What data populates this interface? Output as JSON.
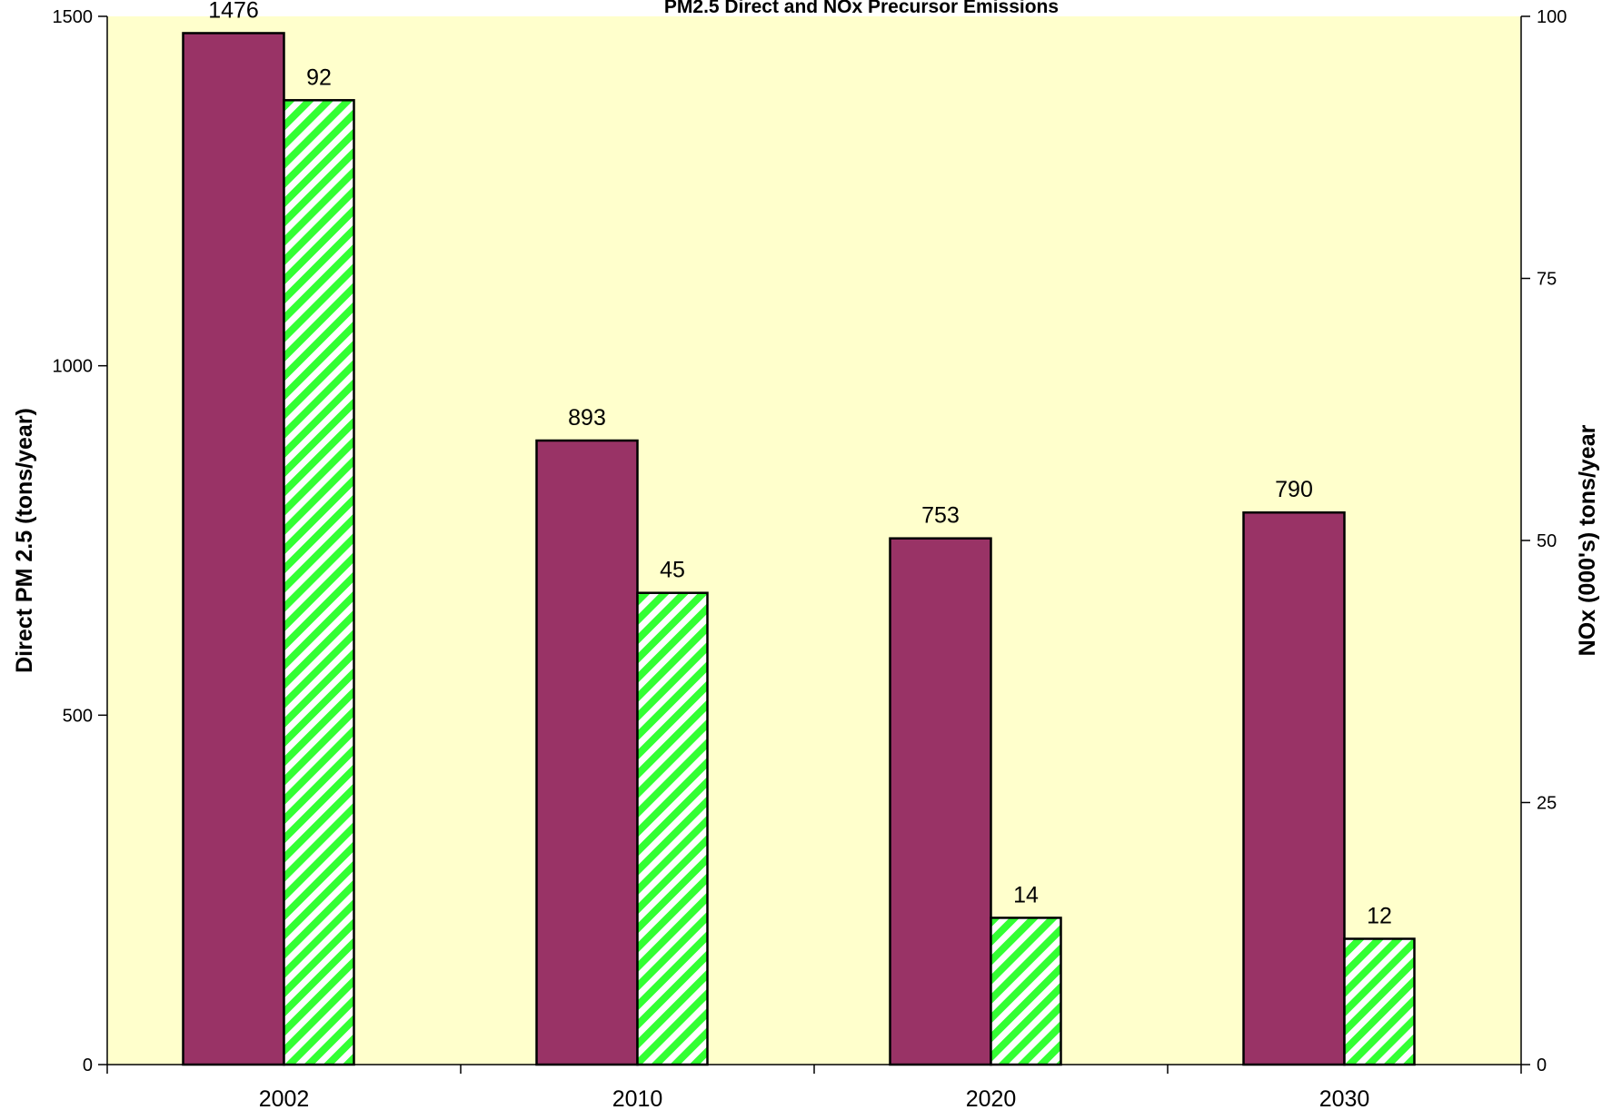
{
  "chart_data": {
    "type": "bar",
    "title": "PM2.5 Direct and NOx Precursor Emissions",
    "categories": [
      "2002",
      "2010",
      "2020",
      "2030"
    ],
    "series": [
      {
        "values": [
          1476,
          893,
          753,
          790
        ],
        "axis": "left",
        "fill": "#993366",
        "pattern": "solid"
      },
      {
        "values": [
          92,
          45,
          14,
          12
        ],
        "axis": "right",
        "fill": "#33ff33",
        "pattern": "diagonal-stripes"
      }
    ],
    "ylabel_left": "Direct PM 2.5 (tons/year)",
    "ylabel_right": "NOx (000's) tons/year",
    "ylim_left": [
      0,
      1500
    ],
    "ylim_right": [
      0,
      100
    ],
    "yticks_left": [
      0,
      500,
      1000,
      1500
    ],
    "yticks_right": [
      0,
      25,
      50,
      75,
      100
    ],
    "plot_background": "#ffffcc",
    "grid": false,
    "legend": "none"
  }
}
